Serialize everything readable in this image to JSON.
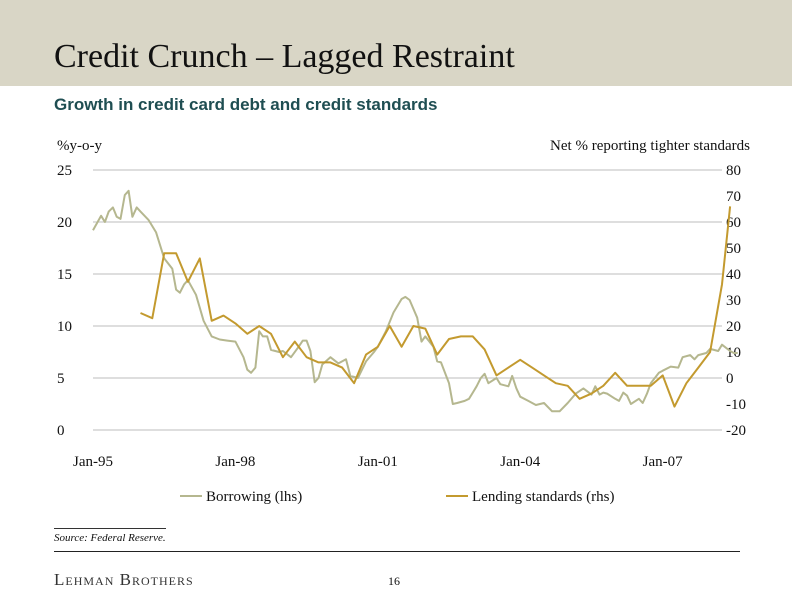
{
  "header": {
    "title": "Credit Crunch – Lagged Restraint",
    "subtitle": "Growth in credit card debt and credit standards"
  },
  "footer": {
    "source": "Source: Federal Reserve.",
    "brand": "Lehman Brothers",
    "page": "16"
  },
  "colors": {
    "borrowing": "#b5b78f",
    "lending": "#c39a2f",
    "grid": "#bdbdbd",
    "band": "#d9d6c6"
  },
  "chart_data": {
    "type": "line",
    "y_left_label": "%y-o-y",
    "y_right_label": "Net % reporting tighter standards",
    "xlim": [
      1995.0,
      2008.25
    ],
    "x_ticks": [
      {
        "label": "Jan-95",
        "x": 1995.0
      },
      {
        "label": "Jan-98",
        "x": 1998.0
      },
      {
        "label": "Jan-01",
        "x": 2001.0
      },
      {
        "label": "Jan-04",
        "x": 2004.0
      },
      {
        "label": "Jan-07",
        "x": 2007.0
      }
    ],
    "ylim_left": [
      0,
      25
    ],
    "yticks_left": [
      0,
      5,
      10,
      15,
      20,
      25
    ],
    "ylim_right": [
      -20,
      80
    ],
    "yticks_right": [
      -20,
      -10,
      0,
      10,
      20,
      30,
      40,
      50,
      60,
      70,
      80
    ],
    "grid": "horizontal",
    "legend": "bottom-center",
    "series": [
      {
        "name": "Borrowing (lhs)",
        "axis": "left",
        "points": [
          [
            1995.0,
            19.2
          ],
          [
            1995.17,
            20.6
          ],
          [
            1995.25,
            20.0
          ],
          [
            1995.33,
            21.0
          ],
          [
            1995.42,
            21.4
          ],
          [
            1995.5,
            20.5
          ],
          [
            1995.58,
            20.3
          ],
          [
            1995.67,
            22.6
          ],
          [
            1995.75,
            23.0
          ],
          [
            1995.83,
            20.5
          ],
          [
            1995.92,
            21.4
          ],
          [
            1996.0,
            21.0
          ],
          [
            1996.17,
            20.2
          ],
          [
            1996.33,
            19.0
          ],
          [
            1996.5,
            16.5
          ],
          [
            1996.67,
            15.5
          ],
          [
            1996.75,
            13.5
          ],
          [
            1996.83,
            13.2
          ],
          [
            1996.92,
            14.0
          ],
          [
            1997.0,
            14.4
          ],
          [
            1997.17,
            13.0
          ],
          [
            1997.33,
            10.5
          ],
          [
            1997.5,
            9.0
          ],
          [
            1997.67,
            8.7
          ],
          [
            1997.83,
            8.6
          ],
          [
            1998.0,
            8.5
          ],
          [
            1998.17,
            7.0
          ],
          [
            1998.25,
            5.8
          ],
          [
            1998.33,
            5.5
          ],
          [
            1998.42,
            6.0
          ],
          [
            1998.5,
            9.5
          ],
          [
            1998.58,
            9.0
          ],
          [
            1998.67,
            9.0
          ],
          [
            1998.75,
            7.7
          ],
          [
            1998.92,
            7.5
          ],
          [
            1999.0,
            7.6
          ],
          [
            1999.17,
            7.0
          ],
          [
            1999.33,
            8.0
          ],
          [
            1999.42,
            8.6
          ],
          [
            1999.5,
            8.6
          ],
          [
            1999.58,
            7.6
          ],
          [
            1999.67,
            4.6
          ],
          [
            1999.75,
            5.0
          ],
          [
            1999.83,
            6.3
          ],
          [
            2000.0,
            7.0
          ],
          [
            2000.17,
            6.4
          ],
          [
            2000.33,
            6.8
          ],
          [
            2000.42,
            5.2
          ],
          [
            2000.58,
            5.0
          ],
          [
            2000.75,
            6.6
          ],
          [
            2000.92,
            7.5
          ],
          [
            2001.0,
            8.0
          ],
          [
            2001.17,
            9.5
          ],
          [
            2001.33,
            11.3
          ],
          [
            2001.5,
            12.6
          ],
          [
            2001.58,
            12.8
          ],
          [
            2001.67,
            12.5
          ],
          [
            2001.83,
            10.8
          ],
          [
            2001.92,
            8.5
          ],
          [
            2002.0,
            9.0
          ],
          [
            2002.17,
            8.0
          ],
          [
            2002.25,
            6.6
          ],
          [
            2002.33,
            6.5
          ],
          [
            2002.5,
            4.5
          ],
          [
            2002.58,
            2.5
          ],
          [
            2002.67,
            2.6
          ],
          [
            2002.83,
            2.8
          ],
          [
            2002.92,
            3.0
          ],
          [
            2003.0,
            3.6
          ],
          [
            2003.08,
            4.2
          ],
          [
            2003.17,
            5.0
          ],
          [
            2003.25,
            5.4
          ],
          [
            2003.33,
            4.5
          ],
          [
            2003.5,
            5.0
          ],
          [
            2003.58,
            4.4
          ],
          [
            2003.75,
            4.2
          ],
          [
            2003.83,
            5.2
          ],
          [
            2003.92,
            4.0
          ],
          [
            2004.0,
            3.2
          ],
          [
            2004.17,
            2.8
          ],
          [
            2004.33,
            2.4
          ],
          [
            2004.5,
            2.6
          ],
          [
            2004.67,
            1.8
          ],
          [
            2004.83,
            1.8
          ],
          [
            2005.0,
            2.6
          ],
          [
            2005.17,
            3.5
          ],
          [
            2005.33,
            4.0
          ],
          [
            2005.5,
            3.4
          ],
          [
            2005.58,
            4.2
          ],
          [
            2005.67,
            3.4
          ],
          [
            2005.75,
            3.6
          ],
          [
            2005.83,
            3.5
          ],
          [
            2006.0,
            3.0
          ],
          [
            2006.08,
            2.8
          ],
          [
            2006.17,
            3.6
          ],
          [
            2006.25,
            3.3
          ],
          [
            2006.33,
            2.5
          ],
          [
            2006.5,
            3.0
          ],
          [
            2006.58,
            2.6
          ],
          [
            2006.67,
            3.5
          ],
          [
            2006.75,
            4.5
          ],
          [
            2006.92,
            5.5
          ],
          [
            2007.0,
            5.7
          ],
          [
            2007.17,
            6.1
          ],
          [
            2007.33,
            6.0
          ],
          [
            2007.42,
            7.0
          ],
          [
            2007.58,
            7.2
          ],
          [
            2007.67,
            6.8
          ],
          [
            2007.75,
            7.2
          ],
          [
            2007.92,
            7.4
          ],
          [
            2008.0,
            7.8
          ],
          [
            2008.17,
            7.6
          ],
          [
            2008.25,
            8.2
          ],
          [
            2008.42,
            7.6
          ],
          [
            2008.5,
            7.4
          ],
          [
            2008.58,
            7.4
          ]
        ]
      },
      {
        "name": "Lending standards (rhs)",
        "axis": "right",
        "points": [
          [
            1996.0,
            25
          ],
          [
            1996.25,
            23
          ],
          [
            1996.5,
            48
          ],
          [
            1996.75,
            48
          ],
          [
            1997.0,
            37
          ],
          [
            1997.25,
            46
          ],
          [
            1997.5,
            22
          ],
          [
            1997.75,
            24
          ],
          [
            1998.0,
            21
          ],
          [
            1998.25,
            17
          ],
          [
            1998.5,
            20
          ],
          [
            1998.75,
            17
          ],
          [
            1999.0,
            8
          ],
          [
            1999.25,
            14
          ],
          [
            1999.5,
            8
          ],
          [
            1999.75,
            6
          ],
          [
            2000.0,
            6
          ],
          [
            2000.25,
            4
          ],
          [
            2000.5,
            -2
          ],
          [
            2000.75,
            9
          ],
          [
            2001.0,
            12
          ],
          [
            2001.25,
            20
          ],
          [
            2001.5,
            12
          ],
          [
            2001.75,
            20
          ],
          [
            2002.0,
            19
          ],
          [
            2002.25,
            9
          ],
          [
            2002.5,
            15
          ],
          [
            2002.75,
            16
          ],
          [
            2003.0,
            16
          ],
          [
            2003.25,
            11
          ],
          [
            2003.5,
            1
          ],
          [
            2003.75,
            4
          ],
          [
            2004.0,
            7
          ],
          [
            2004.25,
            4
          ],
          [
            2004.5,
            1
          ],
          [
            2004.75,
            -2
          ],
          [
            2005.0,
            -3
          ],
          [
            2005.25,
            -8
          ],
          [
            2005.5,
            -6
          ],
          [
            2005.75,
            -3
          ],
          [
            2006.0,
            2
          ],
          [
            2006.25,
            -3
          ],
          [
            2006.5,
            -3
          ],
          [
            2006.75,
            -3
          ],
          [
            2007.0,
            1
          ],
          [
            2007.25,
            -11
          ],
          [
            2007.5,
            -2
          ],
          [
            2007.75,
            4
          ],
          [
            2008.0,
            10
          ],
          [
            2008.25,
            36
          ],
          [
            2008.42,
            66
          ]
        ]
      }
    ]
  }
}
